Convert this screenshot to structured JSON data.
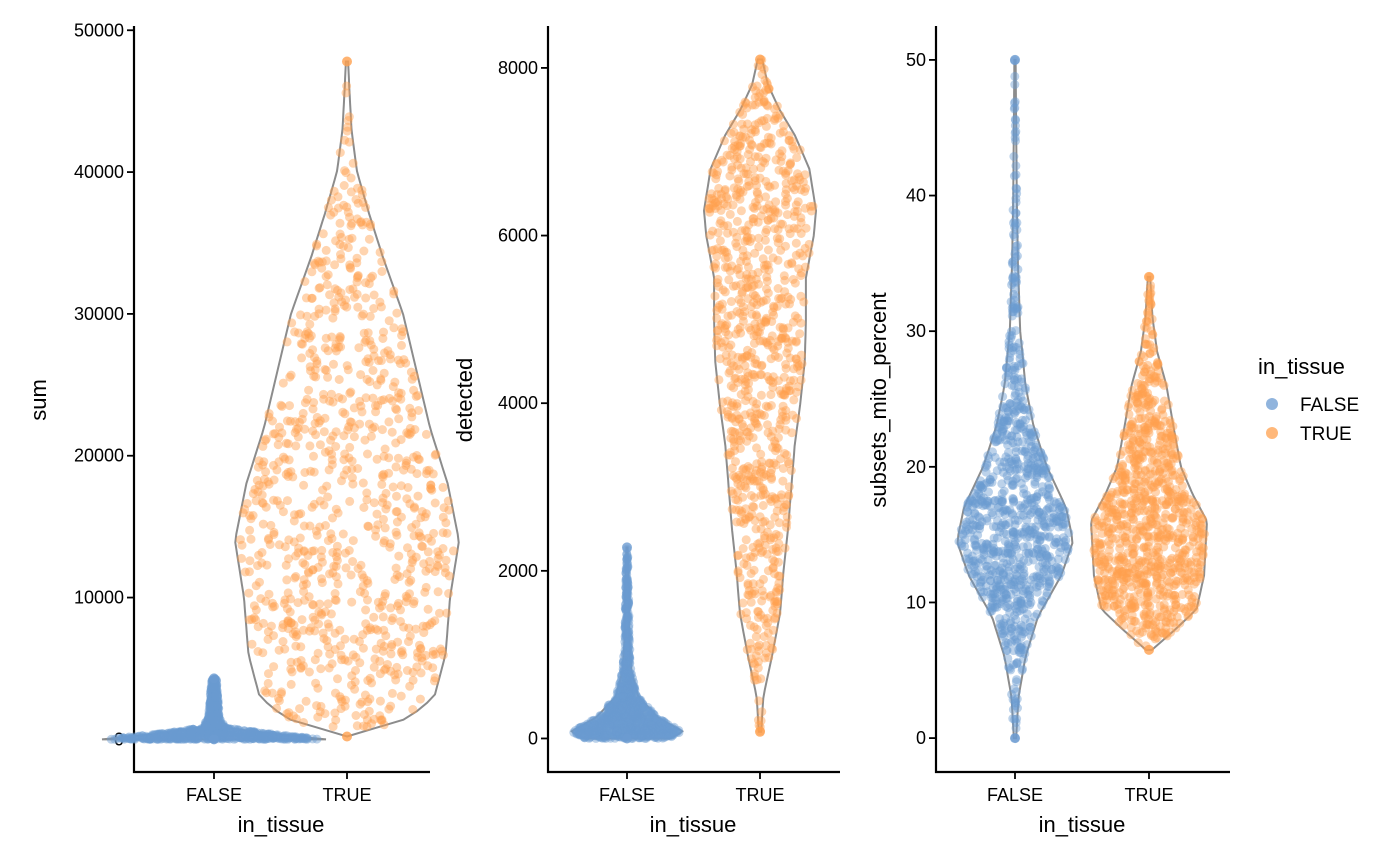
{
  "chart_data": [
    {
      "type": "violin",
      "xlabel": "in_tissue",
      "ylabel": "sum",
      "categories": [
        "FALSE",
        "TRUE"
      ],
      "ylim": [
        -2300,
        50300
      ],
      "yticks": [
        0,
        10000,
        20000,
        30000,
        40000,
        50000
      ],
      "ytick_labels": [
        "0",
        "10000",
        "20000",
        "30000",
        "40000",
        "50000"
      ],
      "series": [
        {
          "category": "FALSE",
          "color": "#6B9BD1",
          "min": 0,
          "max": 4300,
          "median": 150,
          "profile": [
            [
              0,
              1.0
            ],
            [
              300,
              0.6
            ],
            [
              800,
              0.12
            ],
            [
              1500,
              0.05
            ],
            [
              2500,
              0.04
            ],
            [
              3500,
              0.03
            ],
            [
              4300,
              0.02
            ]
          ]
        },
        {
          "category": "TRUE",
          "color": "#FFA04D",
          "min": 200,
          "max": 47800,
          "median": 14000,
          "profile": [
            [
              200,
              0.0
            ],
            [
              1500,
              0.55
            ],
            [
              3000,
              0.78
            ],
            [
              6000,
              0.88
            ],
            [
              10000,
              0.92
            ],
            [
              14000,
              1.0
            ],
            [
              18000,
              0.9
            ],
            [
              22000,
              0.74
            ],
            [
              26000,
              0.62
            ],
            [
              30000,
              0.5
            ],
            [
              34000,
              0.32
            ],
            [
              37000,
              0.2
            ],
            [
              40000,
              0.09
            ],
            [
              43000,
              0.04
            ],
            [
              46000,
              0.02
            ],
            [
              47800,
              0.01
            ]
          ]
        }
      ]
    },
    {
      "type": "violin",
      "xlabel": "in_tissue",
      "ylabel": "detected",
      "categories": [
        "FALSE",
        "TRUE"
      ],
      "ylim": [
        -400,
        8500
      ],
      "yticks": [
        0,
        2000,
        4000,
        6000,
        8000
      ],
      "ytick_labels": [
        "0",
        "2000",
        "4000",
        "6000",
        "8000"
      ],
      "series": [
        {
          "category": "FALSE",
          "color": "#6B9BD1",
          "min": 0,
          "max": 2280,
          "median": 80,
          "profile": [
            [
              0,
              0.75
            ],
            [
              80,
              1.0
            ],
            [
              250,
              0.55
            ],
            [
              500,
              0.2
            ],
            [
              800,
              0.08
            ],
            [
              1200,
              0.04
            ],
            [
              1700,
              0.03
            ],
            [
              2280,
              0.01
            ]
          ]
        },
        {
          "category": "TRUE",
          "color": "#FFA04D",
          "min": 80,
          "max": 8100,
          "median": 5200,
          "profile": [
            [
              80,
              0.02
            ],
            [
              500,
              0.06
            ],
            [
              1000,
              0.22
            ],
            [
              1500,
              0.36
            ],
            [
              2000,
              0.42
            ],
            [
              2500,
              0.5
            ],
            [
              3000,
              0.56
            ],
            [
              3500,
              0.62
            ],
            [
              4000,
              0.72
            ],
            [
              4500,
              0.8
            ],
            [
              5000,
              0.82
            ],
            [
              5500,
              0.82
            ],
            [
              6000,
              0.96
            ],
            [
              6300,
              1.0
            ],
            [
              6800,
              0.88
            ],
            [
              7200,
              0.62
            ],
            [
              7500,
              0.35
            ],
            [
              7800,
              0.14
            ],
            [
              8100,
              0.04
            ]
          ]
        }
      ]
    },
    {
      "type": "violin",
      "xlabel": "in_tissue",
      "ylabel": "subsets_mito_percent",
      "categories": [
        "FALSE",
        "TRUE"
      ],
      "ylim": [
        -2.5,
        52.5
      ],
      "yticks": [
        0,
        10,
        20,
        30,
        40,
        50
      ],
      "ytick_labels": [
        "0",
        "10",
        "20",
        "30",
        "40",
        "50"
      ],
      "series": [
        {
          "category": "FALSE",
          "color": "#6B9BD1",
          "min": 0,
          "max": 50,
          "median": 15,
          "profile": [
            [
              0,
              0.02
            ],
            [
              3,
              0.06
            ],
            [
              6,
              0.18
            ],
            [
              9,
              0.4
            ],
            [
              12,
              0.8
            ],
            [
              14.5,
              1.0
            ],
            [
              17,
              0.88
            ],
            [
              20,
              0.55
            ],
            [
              23,
              0.32
            ],
            [
              26,
              0.18
            ],
            [
              30,
              0.09
            ],
            [
              35,
              0.05
            ],
            [
              40,
              0.03
            ],
            [
              45,
              0.02
            ],
            [
              50,
              0.01
            ]
          ]
        },
        {
          "category": "TRUE",
          "color": "#FFA04D",
          "min": 6.5,
          "max": 34,
          "median": 14,
          "profile": [
            [
              6.5,
              0.05
            ],
            [
              8,
              0.45
            ],
            [
              9.5,
              0.82
            ],
            [
              12,
              0.95
            ],
            [
              14.5,
              0.98
            ],
            [
              16,
              1.0
            ],
            [
              18,
              0.75
            ],
            [
              20,
              0.55
            ],
            [
              23,
              0.42
            ],
            [
              26,
              0.3
            ],
            [
              28.5,
              0.14
            ],
            [
              31,
              0.06
            ],
            [
              34,
              0.02
            ]
          ]
        }
      ]
    }
  ],
  "legend": {
    "title": "in_tissue",
    "items": [
      {
        "label": "FALSE",
        "color": "#6B9BD1"
      },
      {
        "label": "TRUE",
        "color": "#FFA04D"
      }
    ]
  }
}
